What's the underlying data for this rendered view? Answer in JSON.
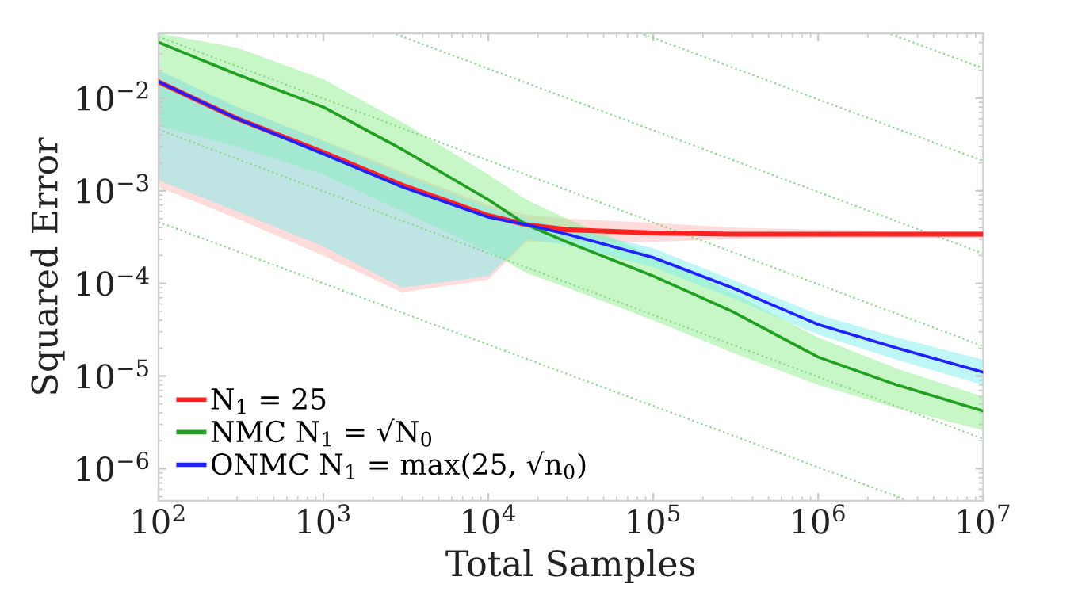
{
  "chart_data": {
    "type": "line",
    "xlabel": "Total Samples",
    "ylabel": "Squared Error",
    "log": "xy",
    "xlim": [
      100,
      10000000
    ],
    "ylim": [
      4.5e-07,
      0.05
    ],
    "xticks": [
      {
        "value": 100,
        "label": "10$^{2}$"
      },
      {
        "value": 1000,
        "label": "10$^{3}$"
      },
      {
        "value": 10000,
        "label": "10$^{4}$"
      },
      {
        "value": 100000,
        "label": "10$^{5}$"
      },
      {
        "value": 1000000,
        "label": "10$^{6}$"
      },
      {
        "value": 10000000,
        "label": "10$^{7}$"
      }
    ],
    "yticks": [
      {
        "value": 1e-06,
        "label": "10$^{−6}$"
      },
      {
        "value": 1e-05,
        "label": "10$^{−5}$"
      },
      {
        "value": 0.0001,
        "label": "10$^{−4}$"
      },
      {
        "value": 0.001,
        "label": "10$^{−3}$"
      },
      {
        "value": 0.01,
        "label": "10$^{−2}$"
      }
    ],
    "grid": false,
    "legend": "bottom left",
    "marker": "none",
    "x": [
      100,
      300,
      1000,
      3000,
      10000,
      17000,
      30000,
      100000,
      300000,
      1000000,
      3000000,
      10000000
    ],
    "series": [
      {
        "name": "N$_{1}$ = 25",
        "color": "#ff2020",
        "line_style": "solid",
        "values": [
          0.015,
          0.006,
          0.0026,
          0.00115,
          0.00054,
          0.00043,
          0.00038,
          0.00035,
          0.00034,
          0.00034,
          0.00034,
          0.00034
        ],
        "upper": [
          0.02,
          0.008,
          0.0035,
          0.0016,
          0.0007,
          0.00055,
          0.0005,
          0.00045,
          0.0004,
          0.00038,
          0.00037,
          0.00037
        ],
        "lower": [
          0.0011,
          0.0005,
          0.0002,
          8e-05,
          0.00011,
          0.00028,
          0.00028,
          0.00028,
          0.0003,
          0.00031,
          0.00031,
          0.00031
        ]
      },
      {
        "name": "NMC N$_{1}$ = √N$_{0}$",
        "color": "#1fa01f",
        "line_style": "solid",
        "values": [
          0.04,
          0.018,
          0.008,
          0.0028,
          0.0008,
          0.00043,
          0.00028,
          0.00012,
          5e-05,
          1.6e-05,
          8e-06,
          4.2e-06
        ],
        "upper": [
          0.05,
          0.035,
          0.016,
          0.0055,
          0.0015,
          0.0008,
          0.0005,
          0.0002,
          8e-05,
          2.6e-05,
          1.2e-05,
          6e-06
        ],
        "lower": [
          0.005,
          0.003,
          0.0015,
          0.0006,
          0.00022,
          0.00013,
          9e-05,
          4e-05,
          1.8e-05,
          8e-06,
          4.5e-06,
          2.6e-06
        ]
      },
      {
        "name": "ONMC N$_{1}$ = max(25, √n$_{0}$)",
        "color": "#2020ff",
        "line_style": "solid",
        "values": [
          0.015,
          0.006,
          0.0025,
          0.0011,
          0.00052,
          0.00043,
          0.00034,
          0.00019,
          9e-05,
          3.6e-05,
          2e-05,
          1.1e-05
        ],
        "upper": [
          0.02,
          0.008,
          0.0034,
          0.0015,
          0.00065,
          0.0005,
          0.0004,
          0.00024,
          0.00011,
          4.6e-05,
          2.6e-05,
          1.5e-05
        ],
        "lower": [
          0.0013,
          0.0006,
          0.00025,
          9e-05,
          0.00012,
          0.0003,
          0.00026,
          0.00015,
          7e-05,
          2.8e-05,
          1.5e-05,
          8e-06
        ]
      },
      {
        "color": "#88d888",
        "line_style": "dotted",
        "x": [
          2750000,
          10000000
        ],
        "values": [
          0.049,
          0.021
        ]
      },
      {
        "color": "#88d888",
        "line_style": "dotted",
        "x": [
          87000,
          10000000
        ],
        "values": [
          0.049,
          0.0021
        ]
      },
      {
        "color": "#88d888",
        "line_style": "dotted",
        "x": [
          2750,
          10000000
        ],
        "values": [
          0.049,
          0.00021
        ]
      },
      {
        "color": "#88d888",
        "line_style": "dotted",
        "x": [
          100,
          10000000
        ],
        "values": [
          0.046,
          2.1e-05
        ]
      },
      {
        "color": "#88d888",
        "line_style": "dotted",
        "x": [
          100,
          10000000
        ],
        "values": [
          0.0046,
          2.1e-06
        ]
      },
      {
        "color": "#88d888",
        "line_style": "dotted",
        "x": [
          100,
          3400000
        ],
        "values": [
          0.00046,
          4.6e-07
        ]
      }
    ]
  }
}
